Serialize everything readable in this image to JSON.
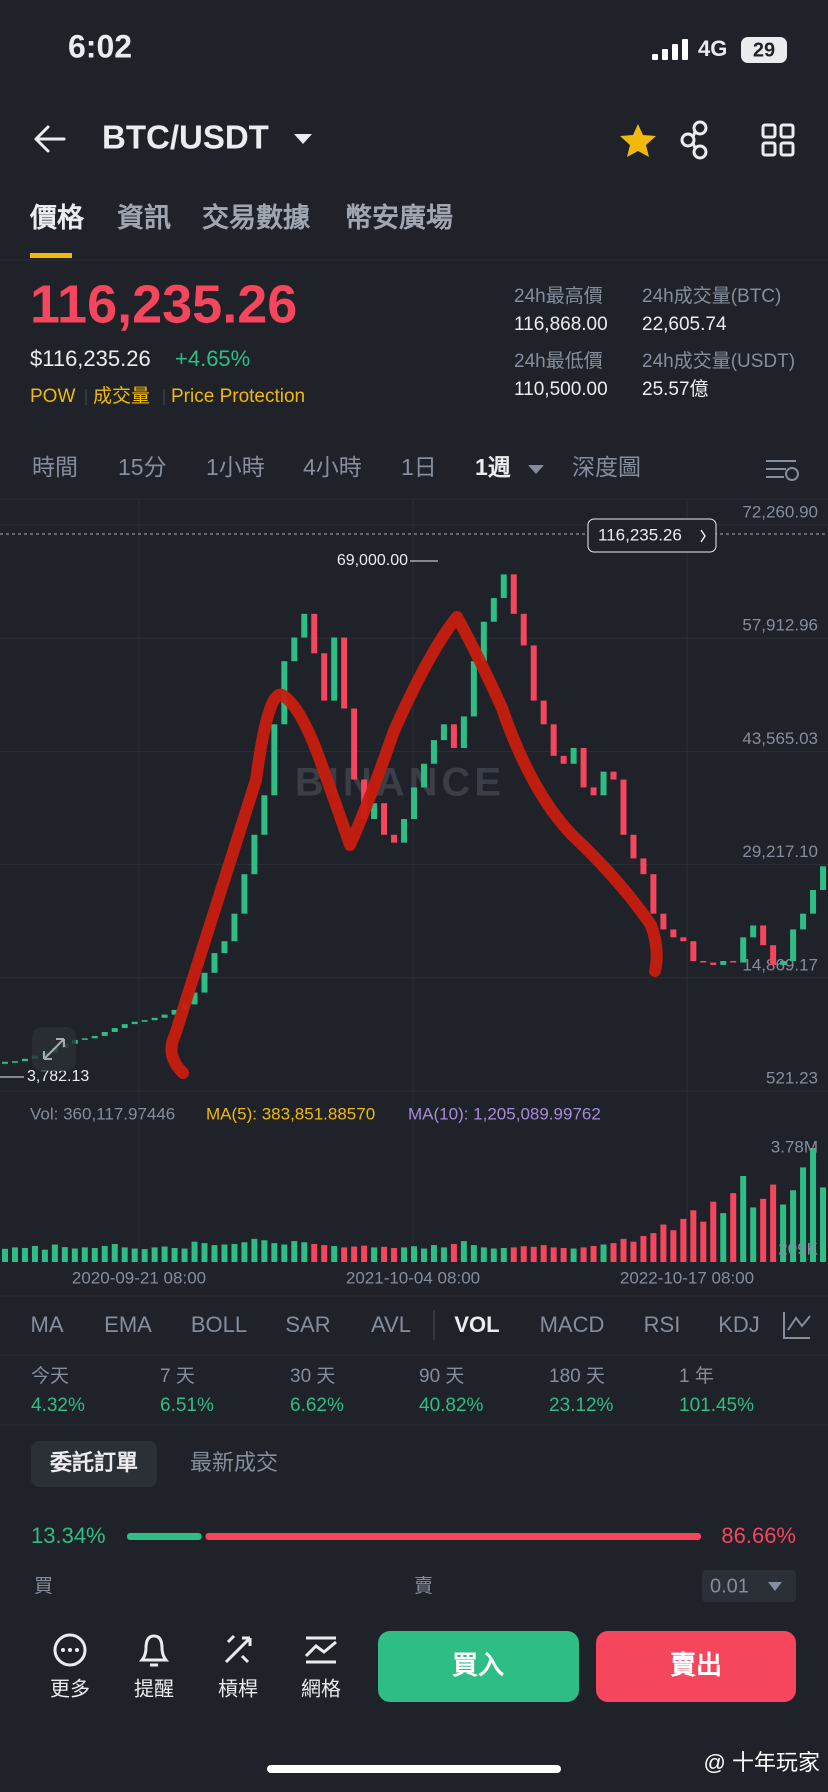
{
  "status": {
    "time": "6:02",
    "network": "4G",
    "battery": "29"
  },
  "header": {
    "pair": "BTC/USDT"
  },
  "tabs": [
    "價格",
    "資訊",
    "交易數據",
    "幣安廣場"
  ],
  "price": {
    "last": "116,235.26",
    "usd": "$116,235.26",
    "change": "+4.65%",
    "tags": [
      "POW",
      "成交量",
      "Price Protection"
    ]
  },
  "stats": [
    {
      "label": "24h最高價",
      "value": "116,868.00"
    },
    {
      "label": "24h成交量(BTC)",
      "value": "22,605.74"
    },
    {
      "label": "24h最低價",
      "value": "110,500.00"
    },
    {
      "label": "24h成交量(USDT)",
      "value": "25.57億"
    }
  ],
  "intervals": [
    "時間",
    "15分",
    "1小時",
    "4小時",
    "1日",
    "1週",
    "深度圖"
  ],
  "chart_data": {
    "type": "candlestick",
    "watermark": "BINANCE",
    "current_price": "116,235.26",
    "high_label": "69,000.00",
    "low_label": "3,782.13",
    "ylim": [
      521.23,
      72260.9
    ],
    "yticks": [
      521.23,
      {
        "value": 14869.17,
        "label": "14,869.17"
      },
      {
        "value": 29217.1,
        "label": "29,217.10"
      },
      {
        "value": 43565.03,
        "label": "43,565.03"
      },
      {
        "value": 57912.96,
        "label": "57,912.96"
      },
      {
        "value": 72260.9,
        "label": "72,260.90"
      }
    ],
    "close": [
      4100,
      4300,
      4600,
      5000,
      5400,
      6000,
      6500,
      7000,
      7200,
      7500,
      8000,
      8500,
      9000,
      9300,
      9500,
      9800,
      10200,
      10800,
      11500,
      13000,
      15500,
      18000,
      19500,
      23000,
      28000,
      33000,
      38000,
      47000,
      55000,
      58000,
      61000,
      56000,
      50000,
      58000,
      49000,
      40000,
      35000,
      37000,
      33000,
      32000,
      35000,
      39000,
      42000,
      45000,
      47000,
      44000,
      48000,
      55000,
      60000,
      63000,
      66000,
      61000,
      57000,
      50000,
      47000,
      43000,
      42000,
      44000,
      39000,
      38000,
      41000,
      40000,
      33000,
      30000,
      28000,
      23000,
      21000,
      20000,
      19500,
      17000,
      16800,
      16500,
      17000,
      16800,
      20000,
      21500,
      19000,
      16500,
      17000,
      21000,
      23000,
      26000,
      29000
    ],
    "volume": [
      250,
      300,
      280,
      350,
      220,
      400,
      310,
      260,
      300,
      280,
      350,
      420,
      300,
      260,
      240,
      300,
      330,
      280,
      260,
      500,
      450,
      380,
      400,
      420,
      480,
      600,
      550,
      450,
      400,
      520,
      480,
      420,
      380,
      350,
      300,
      330,
      360,
      300,
      320,
      280,
      300,
      340,
      260,
      380,
      300,
      420,
      520,
      380,
      300,
      260,
      280,
      300,
      340,
      320,
      380,
      300,
      280,
      260,
      300,
      350,
      400,
      450,
      600,
      500,
      700,
      800,
      1100,
      900,
      1300,
      1600,
      1200,
      1900,
      1500,
      2200,
      2800,
      1700,
      2000,
      2500,
      1800,
      2300,
      3100,
      3780,
      2400
    ],
    "vol_ylim": [
      209,
      3780
    ],
    "vol_ticks": [
      {
        "value": 3780,
        "label": "3.78M"
      },
      {
        "value": 209,
        "label": "209K"
      }
    ],
    "vol_info": [
      "Vol: 360,117.97446",
      "MA(5): 383,851.88570",
      "MA(10): 1,205,089.99762"
    ],
    "x_labels": [
      "2020-09-21 08:00",
      "2021-10-04 08:00",
      "2022-10-17 08:00"
    ],
    "colors": {
      "up": "#2ebd85",
      "down": "#f6465d"
    }
  },
  "indicators": [
    "MA",
    "EMA",
    "BOLL",
    "SAR",
    "AVL",
    "VOL",
    "MACD",
    "RSI",
    "KDJ"
  ],
  "performance": {
    "labels": [
      "今天",
      "7 天",
      "30 天",
      "90 天",
      "180 天",
      "1 年"
    ],
    "values": [
      "4.32%",
      "6.51%",
      "6.62%",
      "40.82%",
      "23.12%",
      "101.45%"
    ]
  },
  "order_book": {
    "tabs": [
      "委託訂單",
      "最新成交"
    ],
    "buy": {
      "value": 13.34,
      "label": "13.34%"
    },
    "sell": {
      "value": 86.66,
      "label": "86.66%"
    },
    "bid_label": "買",
    "ask_label": "賣",
    "precision": "0.01"
  },
  "nav": [
    "更多",
    "提醒",
    "槓桿",
    "網格"
  ],
  "actions": {
    "buy": "買入",
    "sell": "賣出"
  },
  "watermark": "@ 十年玩家"
}
